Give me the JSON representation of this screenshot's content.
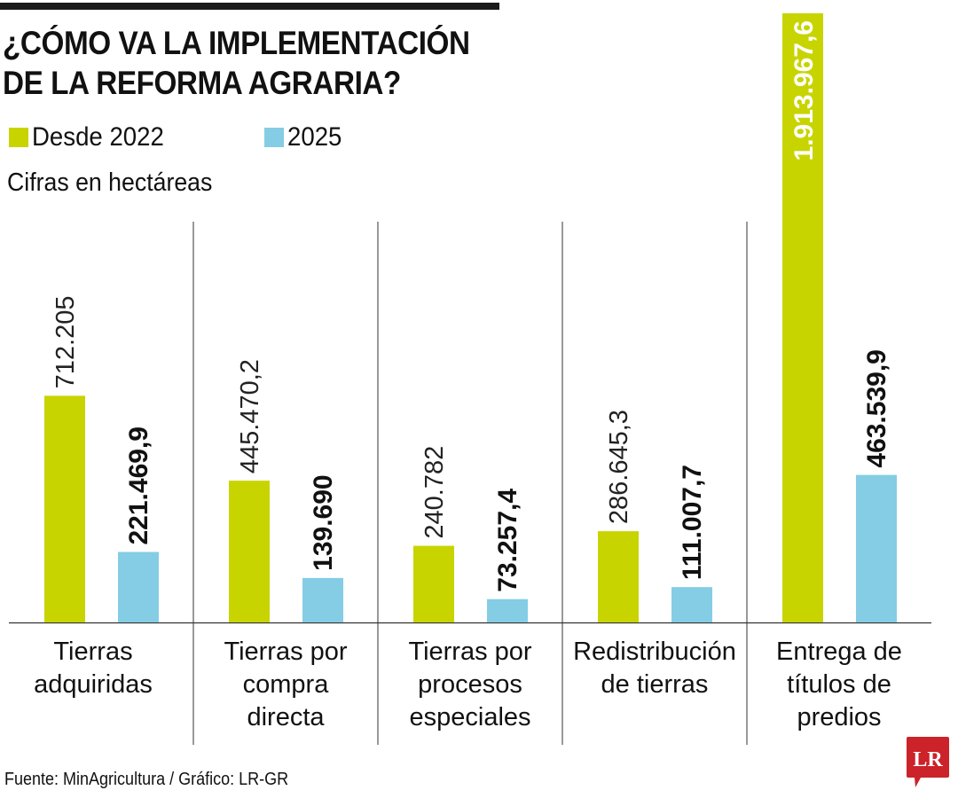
{
  "header": {
    "title_line1": "¿CÓMO VA LA IMPLEMENTACIÓN",
    "title_line2": "DE LA REFORMA AGRARIA?"
  },
  "legend": [
    {
      "label": "Desde 2022",
      "color": "#c8d400"
    },
    {
      "label": "2025",
      "color": "#84cde4"
    }
  ],
  "units_note": "Cifras en hectáreas",
  "source": "Fuente: MinAgricultura / Gráfico: LR-GR",
  "logo": {
    "text": "LR",
    "color": "#cc2229",
    "icon": "lr-logo-speech-bubble-icon"
  },
  "chart_data": {
    "type": "bar",
    "title": "¿Cómo va la implementación de la reforma agraria?",
    "ylabel": "Cifras en hectáreas",
    "xlabel": "",
    "ylim": [
      0,
      1913967.6
    ],
    "grid": false,
    "legend_position": "top-left",
    "categories": [
      [
        "Tierras",
        "adquiridas"
      ],
      [
        "Tierras por",
        "compra",
        "directa"
      ],
      [
        "Tierras por",
        "procesos",
        "especiales"
      ],
      [
        "Redistribución",
        "de tierras"
      ],
      [
        "Entrega de",
        "títulos de",
        "predios"
      ]
    ],
    "series": [
      {
        "name": "Desde 2022",
        "color": "#c8d400",
        "values": [
          712205,
          445470.2,
          240782,
          286645.3,
          1913967.6
        ],
        "labels": [
          "712.205",
          "445.470,2",
          "240.782",
          "286.645,3",
          "1.913.967,6"
        ]
      },
      {
        "name": "2025",
        "color": "#84cde4",
        "values": [
          221469.9,
          139690,
          73257.4,
          111007.7,
          463539.9
        ],
        "labels": [
          "221.469,9",
          "139.690",
          "73.257,4",
          "111.007,7",
          "463.539,9"
        ]
      }
    ]
  }
}
